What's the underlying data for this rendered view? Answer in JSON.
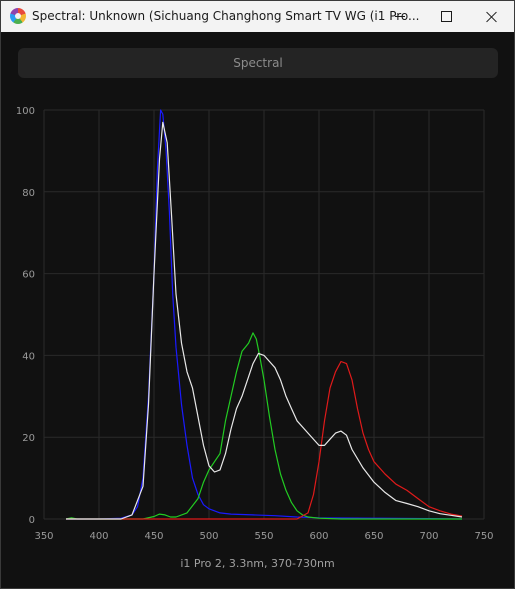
{
  "window": {
    "title": "Spectral: Unknown (Sichuang Changhong Smart TV WG (i1 Pro...",
    "icon": "displaycal-icon",
    "controls": [
      "minimize",
      "maximize",
      "close"
    ]
  },
  "header_button": {
    "label": "Spectral"
  },
  "footer": {
    "text": "i1 Pro 2, 3.3nm, 370-730nm"
  },
  "colors": {
    "background": "#111111",
    "grid": "#2a2a2a",
    "blue": "#1a1aff",
    "green": "#22cc22",
    "red": "#e01a1a",
    "white": "#e8e8e8"
  },
  "chart_data": {
    "type": "line",
    "title": "",
    "xlabel": "",
    "ylabel": "",
    "xlim": [
      350,
      750
    ],
    "ylim": [
      0,
      100
    ],
    "x_ticks": [
      350,
      400,
      450,
      500,
      550,
      600,
      650,
      700,
      750
    ],
    "y_ticks": [
      0,
      20,
      40,
      60,
      80,
      100
    ],
    "grid": true,
    "legend": "none",
    "series": [
      {
        "color": "blue",
        "x": [
          370,
          400,
          420,
          430,
          435,
          440,
          445,
          450,
          453,
          456,
          458,
          461,
          464,
          467,
          470,
          475,
          480,
          485,
          490,
          495,
          500,
          510,
          520,
          540,
          560,
          580,
          600,
          650,
          700,
          730
        ],
        "y": [
          0,
          0,
          0.2,
          1,
          3,
          10,
          30,
          60,
          85,
          100,
          99,
          90,
          75,
          55,
          42,
          28,
          18,
          10,
          6,
          3.5,
          2.5,
          1.5,
          1.2,
          1,
          0.8,
          0.5,
          0.3,
          0.2,
          0.1,
          0
        ]
      },
      {
        "color": "green",
        "x": [
          370,
          375,
          380,
          400,
          440,
          450,
          455,
          460,
          465,
          470,
          480,
          490,
          495,
          500,
          505,
          510,
          515,
          520,
          525,
          530,
          533,
          536,
          540,
          543,
          546,
          550,
          555,
          560,
          565,
          570,
          575,
          580,
          585,
          590,
          600,
          620,
          650,
          700,
          730
        ],
        "y": [
          0,
          0.3,
          0,
          0,
          0,
          0.6,
          1.2,
          1,
          0.5,
          0.5,
          1.5,
          5,
          9,
          12,
          14,
          16,
          24,
          30,
          36,
          41,
          42,
          43,
          45.5,
          44,
          40,
          34,
          25,
          17,
          11,
          7,
          4,
          2,
          1,
          0.5,
          0.2,
          0,
          0,
          0,
          0
        ]
      },
      {
        "color": "red",
        "x": [
          370,
          580,
          590,
          595,
          600,
          605,
          610,
          615,
          620,
          625,
          630,
          635,
          640,
          645,
          650,
          660,
          670,
          680,
          690,
          700,
          710,
          720,
          730
        ],
        "y": [
          0,
          0,
          1.5,
          6,
          14,
          24,
          32,
          36,
          38.5,
          38,
          34,
          27,
          21,
          17,
          14,
          11,
          8.5,
          7,
          5,
          3,
          2,
          1.2,
          0.7
        ]
      },
      {
        "color": "white",
        "x": [
          370,
          420,
          430,
          440,
          445,
          450,
          455,
          458,
          462,
          466,
          470,
          475,
          480,
          485,
          490,
          495,
          500,
          505,
          510,
          515,
          520,
          525,
          530,
          535,
          540,
          545,
          550,
          555,
          560,
          565,
          570,
          575,
          580,
          590,
          600,
          605,
          610,
          615,
          620,
          625,
          630,
          640,
          650,
          660,
          670,
          680,
          690,
          700,
          710,
          720,
          730
        ],
        "y": [
          0,
          0,
          1,
          8,
          28,
          60,
          88,
          97,
          92,
          74,
          55,
          43,
          36,
          32,
          25,
          18,
          13,
          11.5,
          12,
          16,
          22,
          27,
          30,
          34,
          38,
          40.5,
          40,
          38.5,
          37,
          34,
          30,
          27,
          24,
          21,
          18,
          18,
          19.5,
          21,
          21.5,
          20.5,
          17,
          12.5,
          9,
          6.5,
          4.5,
          3.8,
          3,
          2,
          1.3,
          0.9,
          0.5
        ]
      }
    ]
  }
}
